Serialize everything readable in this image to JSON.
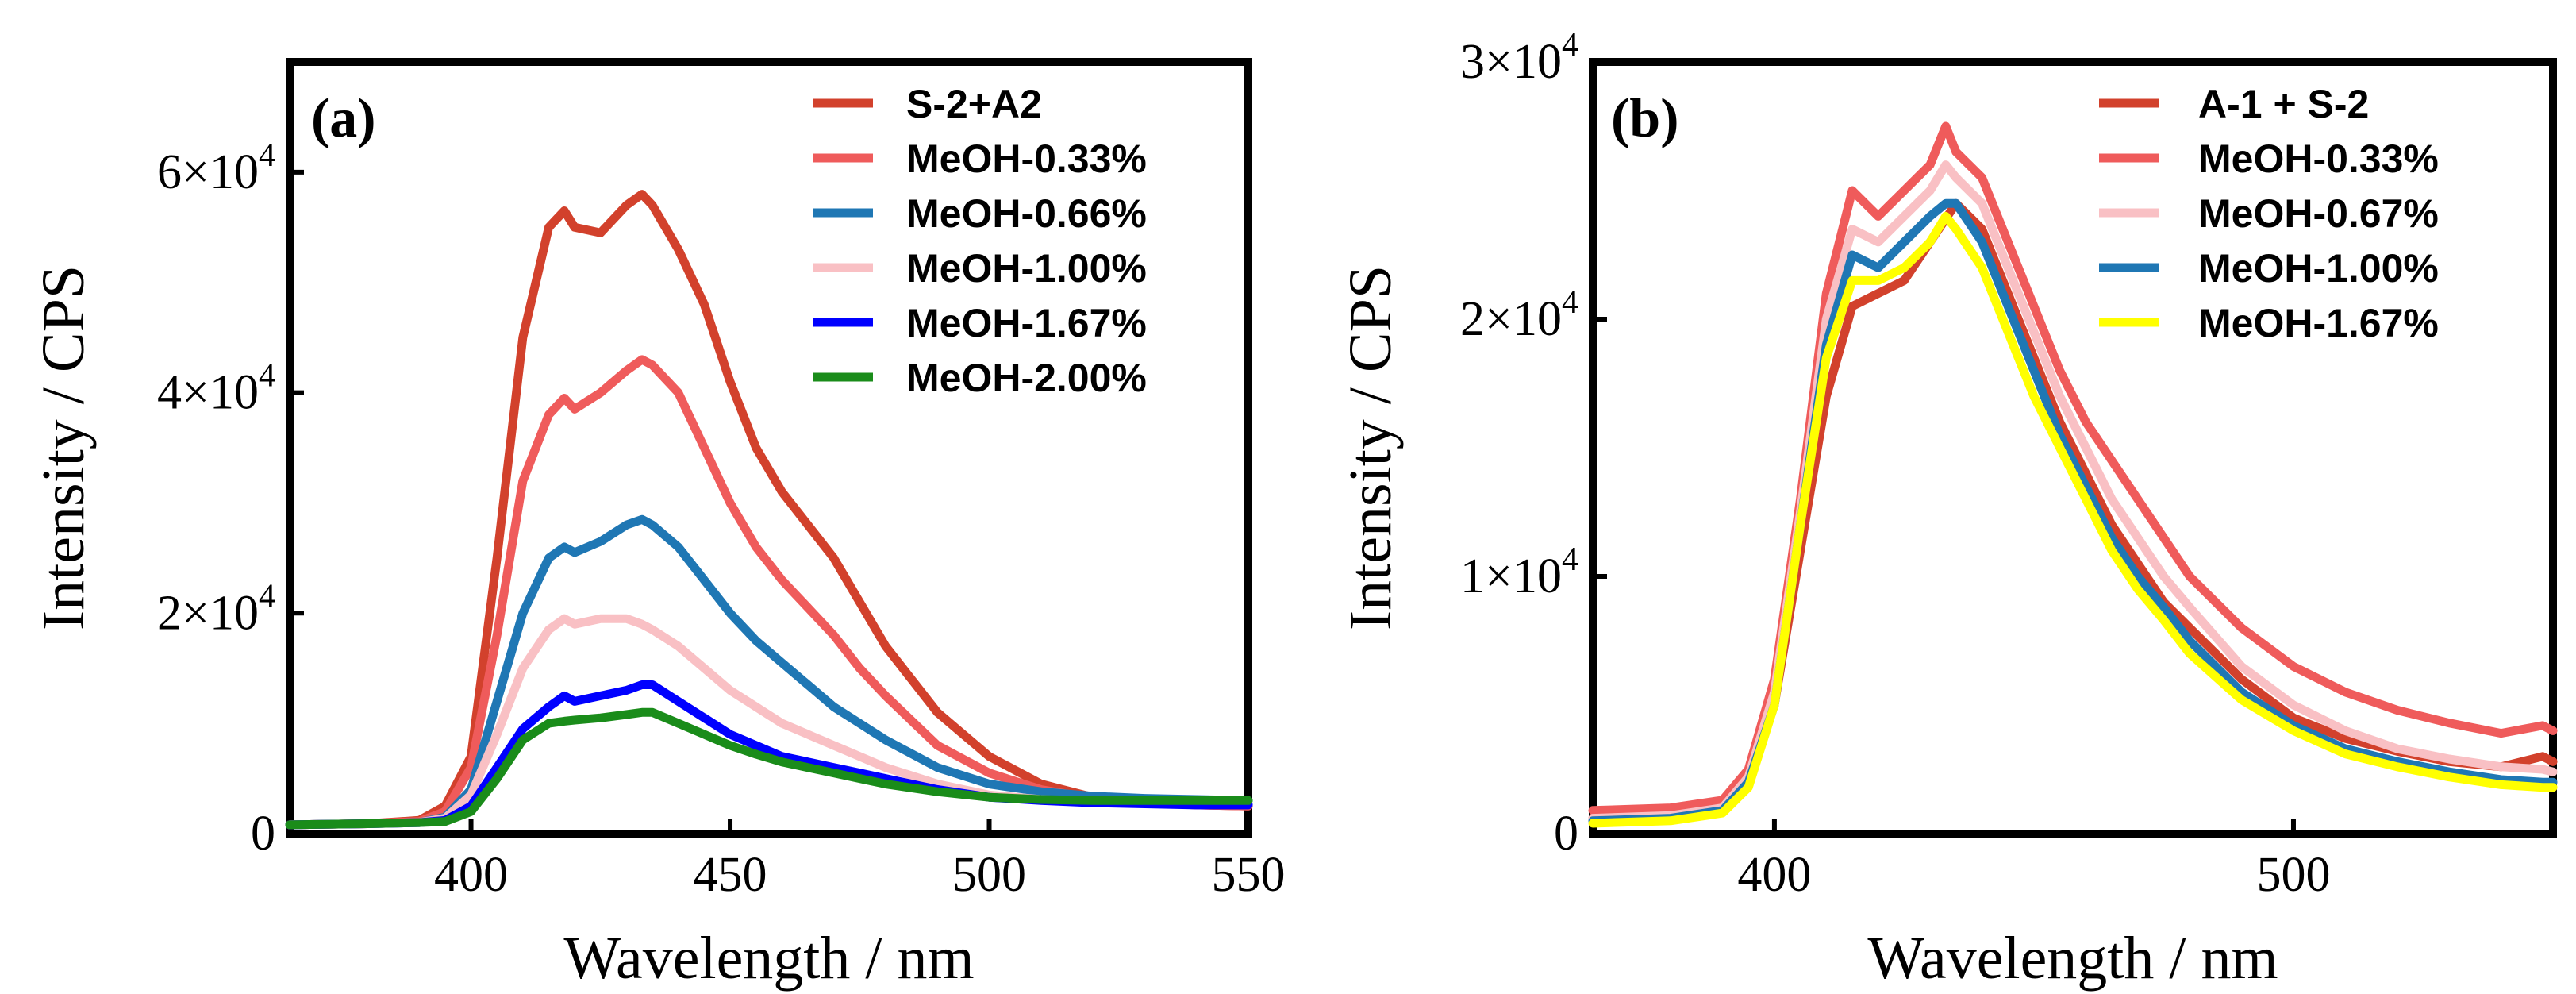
{
  "chart_data": [
    {
      "type": "line",
      "panel_label": "(a)",
      "xlabel": "Wavelength / nm",
      "ylabel": "Intensity / CPS",
      "xlim": [
        365,
        550
      ],
      "ylim": [
        0,
        70000
      ],
      "x_ticks": [
        400,
        450,
        500,
        550
      ],
      "x_tick_labels": [
        "400",
        "450",
        "500",
        "550"
      ],
      "y_ticks": [
        0,
        20000,
        40000,
        60000
      ],
      "y_tick_labels": [
        {
          "mantissa": "0",
          "exponent": ""
        },
        {
          "mantissa": "2×10",
          "exponent": "4"
        },
        {
          "mantissa": "4×10",
          "exponent": "4"
        },
        {
          "mantissa": "6×10",
          "exponent": "4"
        }
      ],
      "legend_position": "top-right",
      "series": [
        {
          "name": "S-2+A2",
          "color": "#d2412c",
          "x": [
            365,
            380,
            390,
            395,
            400,
            405,
            410,
            415,
            418,
            420,
            425,
            430,
            433,
            435,
            440,
            445,
            450,
            455,
            460,
            465,
            470,
            475,
            480,
            490,
            500,
            510,
            520,
            530,
            540,
            550
          ],
          "y": [
            800,
            900,
            1200,
            2500,
            7000,
            25000,
            45000,
            55000,
            56500,
            55000,
            54500,
            57000,
            58000,
            57000,
            53000,
            48000,
            41000,
            35000,
            31000,
            28000,
            25000,
            21000,
            17000,
            11000,
            7000,
            4500,
            3300,
            2800,
            2600,
            2500
          ]
        },
        {
          "name": "MeOH-0.33%",
          "color": "#ef5b5b",
          "x": [
            365,
            380,
            390,
            395,
            400,
            405,
            410,
            415,
            418,
            420,
            425,
            430,
            433,
            435,
            440,
            445,
            450,
            455,
            460,
            465,
            470,
            475,
            480,
            490,
            500,
            510,
            520,
            530,
            540,
            550
          ],
          "y": [
            800,
            900,
            1100,
            2000,
            6000,
            18000,
            32000,
            38000,
            39500,
            38500,
            40000,
            42000,
            43000,
            42500,
            40000,
            35000,
            30000,
            26000,
            23000,
            20500,
            18000,
            15000,
            12500,
            8000,
            5500,
            4000,
            3200,
            2800,
            2600,
            2500
          ]
        },
        {
          "name": "MeOH-0.66%",
          "color": "#1f77b4",
          "x": [
            365,
            380,
            390,
            395,
            400,
            405,
            410,
            415,
            418,
            420,
            425,
            430,
            433,
            435,
            440,
            445,
            450,
            455,
            460,
            465,
            470,
            475,
            480,
            490,
            500,
            510,
            520,
            530,
            540,
            550
          ],
          "y": [
            800,
            900,
            1000,
            1500,
            4000,
            12000,
            20000,
            25000,
            26000,
            25500,
            26500,
            28000,
            28500,
            28000,
            26000,
            23000,
            20000,
            17500,
            15500,
            13500,
            11500,
            10000,
            8500,
            6000,
            4500,
            3800,
            3400,
            3200,
            3100,
            3000
          ]
        },
        {
          "name": "MeOH-1.00%",
          "color": "#f9c0c4",
          "x": [
            365,
            380,
            390,
            395,
            400,
            405,
            410,
            415,
            418,
            420,
            425,
            430,
            433,
            435,
            440,
            445,
            450,
            455,
            460,
            465,
            470,
            475,
            480,
            490,
            500,
            510,
            520,
            530,
            540,
            550
          ],
          "y": [
            800,
            900,
            1000,
            1400,
            3500,
            9000,
            15000,
            18500,
            19500,
            19000,
            19500,
            19500,
            19000,
            18500,
            17000,
            15000,
            13000,
            11500,
            10000,
            9000,
            8000,
            7000,
            6000,
            4500,
            3500,
            3100,
            2900,
            2800,
            2750,
            2700
          ]
        },
        {
          "name": "MeOH-1.67%",
          "color": "#0000ff",
          "x": [
            365,
            380,
            390,
            395,
            400,
            405,
            410,
            415,
            418,
            420,
            425,
            430,
            433,
            435,
            440,
            445,
            450,
            455,
            460,
            465,
            470,
            475,
            480,
            490,
            500,
            510,
            520,
            530,
            540,
            550
          ],
          "y": [
            800,
            900,
            1000,
            1200,
            2500,
            6000,
            9500,
            11500,
            12500,
            12000,
            12500,
            13000,
            13500,
            13500,
            12000,
            10500,
            9000,
            8000,
            7000,
            6500,
            6000,
            5500,
            5000,
            4000,
            3300,
            3000,
            2800,
            2700,
            2600,
            2600
          ]
        },
        {
          "name": "MeOH-2.00%",
          "color": "#1a8c1a",
          "x": [
            365,
            380,
            390,
            395,
            400,
            405,
            410,
            415,
            418,
            420,
            425,
            430,
            433,
            435,
            440,
            445,
            450,
            455,
            460,
            465,
            470,
            475,
            480,
            490,
            500,
            510,
            520,
            530,
            540,
            550
          ],
          "y": [
            800,
            900,
            1000,
            1100,
            2000,
            5000,
            8500,
            10000,
            10200,
            10300,
            10500,
            10800,
            11000,
            11000,
            10000,
            9000,
            8000,
            7200,
            6500,
            6000,
            5500,
            5000,
            4500,
            3800,
            3300,
            3100,
            3000,
            3000,
            3000,
            3000
          ]
        }
      ]
    },
    {
      "type": "line",
      "panel_label": "(b)",
      "xlabel": "Wavelength / nm",
      "ylabel": "Intensity / CPS",
      "xlim": [
        365,
        550
      ],
      "ylim": [
        0,
        30000
      ],
      "x_ticks": [
        400,
        500
      ],
      "x_tick_labels": [
        "400",
        "500"
      ],
      "y_ticks": [
        0,
        10000,
        20000,
        30000
      ],
      "y_tick_labels": [
        {
          "mantissa": "0",
          "exponent": ""
        },
        {
          "mantissa": "1×10",
          "exponent": "4"
        },
        {
          "mantissa": "2×10",
          "exponent": "4"
        },
        {
          "mantissa": "3×10",
          "exponent": "4"
        }
      ],
      "legend_position": "top-right",
      "series": [
        {
          "name": "A-1 + S-2",
          "color": "#d2412c",
          "x": [
            365,
            380,
            390,
            395,
            400,
            405,
            410,
            415,
            420,
            425,
            430,
            435,
            440,
            445,
            450,
            455,
            460,
            465,
            470,
            475,
            480,
            490,
            500,
            510,
            520,
            530,
            540,
            548,
            550
          ],
          "y": [
            600,
            700,
            1000,
            2000,
            5000,
            11000,
            17000,
            20500,
            21000,
            21500,
            23000,
            24500,
            23500,
            21000,
            18500,
            16000,
            14000,
            12000,
            10500,
            9000,
            8000,
            6000,
            4500,
            3700,
            3200,
            2800,
            2600,
            3000,
            2800
          ]
        },
        {
          "name": "MeOH-0.33%",
          "color": "#ef5b5b",
          "x": [
            365,
            380,
            390,
            395,
            400,
            405,
            410,
            415,
            420,
            425,
            430,
            433,
            435,
            440,
            445,
            450,
            455,
            460,
            465,
            470,
            475,
            480,
            490,
            500,
            510,
            520,
            530,
            540,
            548,
            550
          ],
          "y": [
            900,
            1000,
            1300,
            2500,
            6000,
            13000,
            21000,
            25000,
            24000,
            25000,
            26000,
            27500,
            26500,
            25500,
            23000,
            20500,
            18000,
            16000,
            14500,
            13000,
            11500,
            10000,
            8000,
            6500,
            5500,
            4800,
            4300,
            3900,
            4200,
            4000
          ]
        },
        {
          "name": "MeOH-0.67%",
          "color": "#f9c0c4",
          "x": [
            365,
            380,
            390,
            395,
            400,
            405,
            410,
            415,
            420,
            425,
            430,
            433,
            435,
            440,
            445,
            450,
            455,
            460,
            465,
            470,
            475,
            480,
            490,
            500,
            510,
            520,
            530,
            540,
            548,
            550
          ],
          "y": [
            600,
            700,
            1000,
            2200,
            5500,
            12500,
            20000,
            23500,
            23000,
            24000,
            25000,
            26000,
            25500,
            24500,
            22000,
            19500,
            17000,
            15000,
            13000,
            11500,
            10000,
            8800,
            6500,
            5000,
            4000,
            3300,
            2900,
            2600,
            2500,
            2400
          ]
        },
        {
          "name": "MeOH-1.00%",
          "color": "#1f77b4",
          "x": [
            365,
            380,
            390,
            395,
            400,
            405,
            410,
            415,
            420,
            425,
            430,
            433,
            435,
            440,
            445,
            450,
            455,
            460,
            465,
            470,
            475,
            480,
            490,
            500,
            510,
            520,
            530,
            540,
            548,
            550
          ],
          "y": [
            500,
            600,
            900,
            2000,
            5000,
            12000,
            19000,
            22500,
            22000,
            23000,
            24000,
            24500,
            24500,
            23000,
            20500,
            18000,
            15500,
            13500,
            11500,
            10000,
            8800,
            7500,
            5500,
            4200,
            3300,
            2800,
            2400,
            2100,
            2000,
            2000
          ]
        },
        {
          "name": "MeOH-1.67%",
          "color": "#ffff00",
          "x": [
            365,
            380,
            390,
            395,
            400,
            405,
            410,
            415,
            420,
            425,
            430,
            433,
            435,
            440,
            445,
            450,
            455,
            460,
            465,
            470,
            475,
            480,
            490,
            500,
            510,
            520,
            530,
            540,
            548,
            550
          ],
          "y": [
            400,
            500,
            800,
            1800,
            5000,
            12000,
            18500,
            21500,
            21500,
            22000,
            23000,
            24000,
            23500,
            22000,
            19500,
            17000,
            15000,
            13000,
            11000,
            9500,
            8300,
            7000,
            5200,
            4000,
            3100,
            2600,
            2200,
            1900,
            1800,
            1800
          ]
        }
      ]
    }
  ]
}
